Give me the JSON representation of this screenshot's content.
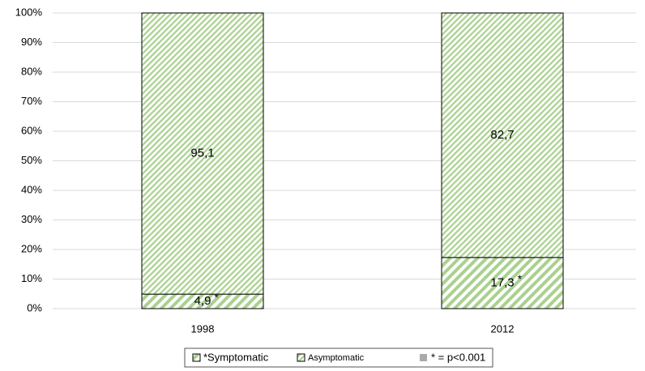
{
  "chart_data": {
    "type": "bar",
    "stacked": true,
    "categories": [
      "1998",
      "2012"
    ],
    "series": [
      {
        "name": "*Symptomatic",
        "color": "#a9d18e",
        "values": [
          4.9,
          17.3
        ],
        "value_labels": [
          "4,9",
          "17,3"
        ]
      },
      {
        "name": "Asymptomatic",
        "color": "#a9d18e",
        "values": [
          95.1,
          82.7
        ],
        "value_labels": [
          "95,1",
          "82,7"
        ]
      }
    ],
    "significance_marker": "*",
    "legend_note": "* = p<0.001",
    "ylim": [
      0,
      100
    ],
    "yticks": [
      {
        "value": 0,
        "label": "0%"
      },
      {
        "value": 10,
        "label": "10%"
      },
      {
        "value": 20,
        "label": "20%"
      },
      {
        "value": 30,
        "label": "30%"
      },
      {
        "value": 40,
        "label": "40%"
      },
      {
        "value": 50,
        "label": "50%"
      },
      {
        "value": 60,
        "label": "60%"
      },
      {
        "value": 70,
        "label": "70%"
      },
      {
        "value": 80,
        "label": "80%"
      },
      {
        "value": 90,
        "label": "90%"
      },
      {
        "value": 100,
        "label": "100%"
      }
    ],
    "grid": true,
    "legend": "bottom"
  }
}
